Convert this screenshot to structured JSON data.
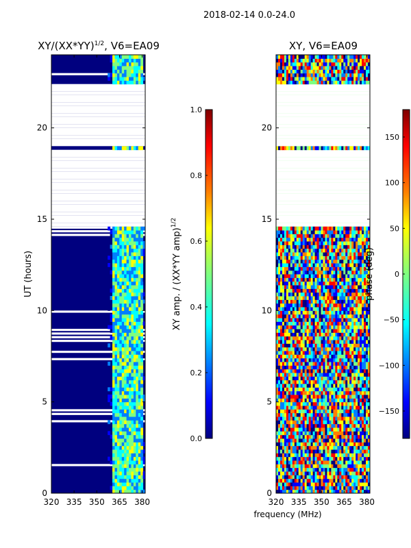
{
  "suptitle": "2018-02-14 0.0-24.0",
  "xlabel_shared": "frequency (MHz)",
  "colors": {
    "background": "#00007f",
    "jet": [
      "#00007f",
      "#0000ff",
      "#007fff",
      "#00ffff",
      "#7fff7f",
      "#ffff00",
      "#ff7f00",
      "#ff0000",
      "#7f0000"
    ]
  },
  "chart_data": [
    {
      "type": "heatmap",
      "title_main": "XY/(XX*YY)",
      "title_sup": "1/2",
      "title_rest": ", V6=EA09",
      "xlabel": "",
      "ylabel": "UT (hours)",
      "xlim": [
        320,
        382
      ],
      "ylim": [
        0,
        24
      ],
      "xticks": [
        320,
        335,
        350,
        365,
        380
      ],
      "yticks": [
        0,
        5,
        10,
        15,
        20
      ],
      "ytick_labels": [
        "0",
        "5",
        "10",
        "15",
        "20"
      ],
      "active_band_mhz": [
        360,
        380
      ],
      "colorbar": {
        "label_main": "XY amp. / (XX*YY amp)",
        "label_sup": "1/2",
        "range": [
          0.0,
          1.0
        ],
        "ticks": [
          0.0,
          0.2,
          0.4,
          0.6,
          0.8,
          1.0
        ],
        "tick_labels": [
          "0.0",
          "0.2",
          "0.4",
          "0.6",
          "0.8",
          "1.0"
        ]
      },
      "gaps_ut_hours": [
        [
          14.4,
          18.6
        ],
        [
          18.9,
          22.3
        ]
      ],
      "description": "Normalized XY amplitude: mostly near 0 below 360 MHz, 0.3-0.7 in 360-380 MHz band"
    },
    {
      "type": "heatmap",
      "title_main": "XY, V6=EA09",
      "title_sup": "",
      "title_rest": "",
      "xlabel": "frequency (MHz)",
      "ylabel": "",
      "xlim": [
        320,
        382
      ],
      "ylim": [
        0,
        24
      ],
      "xticks": [
        320,
        335,
        350,
        365,
        380
      ],
      "yticks": [
        0,
        5,
        10,
        15,
        20
      ],
      "ytick_labels": [
        "0",
        "5",
        "10",
        "15",
        "20"
      ],
      "colorbar": {
        "label_main": "phase (deg)",
        "label_sup": "",
        "range": [
          -180,
          180
        ],
        "ticks": [
          -150,
          -100,
          -50,
          0,
          50,
          100,
          150
        ],
        "tick_labels": [
          "−150",
          "−100",
          "−50",
          "0",
          "50",
          "100",
          "150"
        ]
      },
      "gaps_ut_hours": [
        [
          14.4,
          18.6
        ],
        [
          18.9,
          22.3
        ]
      ],
      "description": "XY phase in degrees, noisy across full band, -180 to 180"
    }
  ]
}
